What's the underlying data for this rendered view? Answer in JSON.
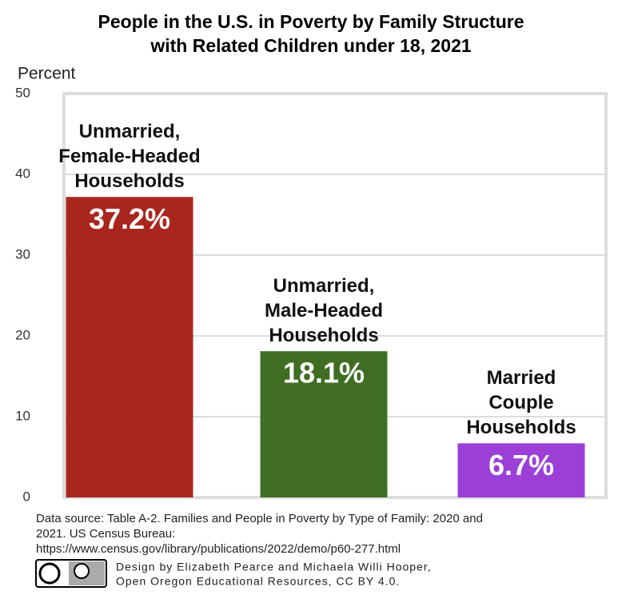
{
  "chart_data": {
    "type": "bar",
    "title_lines": [
      "People in the U.S. in Poverty by Family Structure",
      "with Related Children under 18, 2021"
    ],
    "y_label": "Percent",
    "categories": [
      "Unmarried, Female-Headed Households",
      "Unmarried, Male-Headed Households",
      "Married Couple Households"
    ],
    "values": [
      37.2,
      18.1,
      6.7
    ],
    "value_labels": [
      "37.2%",
      "18.1%",
      "6.7%"
    ],
    "colors": [
      "#a8261e",
      "#3f6e23",
      "#9b3fd6"
    ],
    "ylim": [
      0,
      50
    ],
    "yticks": [
      0,
      10,
      20,
      30,
      40,
      50
    ],
    "grid": true,
    "source_lines": [
      "Data source: Table A-2. Families and People in Poverty by Type of Family: 2020 and",
      "2021. US Census Bureau:",
      "https://www.census.gov/library/publications/2022/demo/p60-277.html"
    ],
    "credit_lines": [
      "Design by Elizabeth Pearce and Michaela Willi Hooper,",
      "Open Oregon Educational Resources, CC BY 4.0."
    ]
  }
}
